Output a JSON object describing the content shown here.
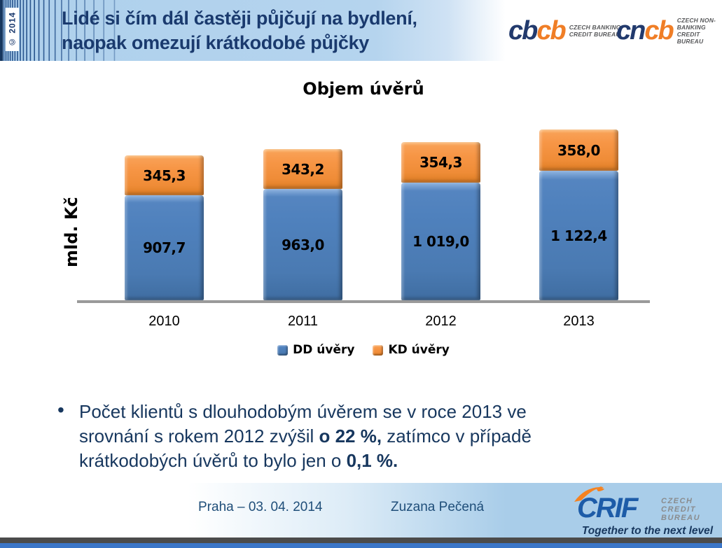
{
  "meta": {
    "copyright": "© 2014"
  },
  "header": {
    "title_line1": "Lidé si čím dál častěji půjčují na bydlení,",
    "title_line2": "naopak omezují krátkodobé půjčky",
    "logos": [
      {
        "id": "cbcb",
        "part1": "cb",
        "part2": "cb",
        "caption_line1": "CZECH BANKING",
        "caption_line2": "CREDIT BUREAU"
      },
      {
        "id": "cncb",
        "part1": "cn",
        "part2": "cb",
        "caption_line1": "CZECH NON-BANKING",
        "caption_line2": "CREDIT BUREAU"
      }
    ]
  },
  "chart_data": {
    "type": "bar",
    "stacked": true,
    "title": "Objem úvěrů",
    "xlabel": "",
    "ylabel": "mld. Kč",
    "categories": [
      "2010",
      "2011",
      "2012",
      "2013"
    ],
    "series": [
      {
        "name": "DD úvěry",
        "color": "#4f81bd",
        "values": [
          907.7,
          963.0,
          1019.0,
          1122.4
        ],
        "labels": [
          "907,7",
          "963,0",
          "1 019,0",
          "1 122,4"
        ]
      },
      {
        "name": "KD úvěry",
        "color": "#f79646",
        "values": [
          345.3,
          343.2,
          354.3,
          358.0
        ],
        "labels": [
          "345,3",
          "343,2",
          "354,3",
          "358,0"
        ]
      }
    ],
    "totals": [
      1253.0,
      1306.2,
      1373.3,
      1480.4
    ],
    "ylim": [
      0,
      1600
    ],
    "grid": false,
    "legend_position": "bottom"
  },
  "bullet": {
    "marker": "•",
    "line1": "Počet klientů s dlouhodobým úvěrem se v roce 2013 ve",
    "line2_pre": "srovnání s rokem 2012 zvýšil ",
    "line2_bold": "o 22 %,",
    "line2_post": " zatímco v případě",
    "line3_pre": "krátkodobých úvěrů to bylo jen o ",
    "line3_bold": "0,1 %."
  },
  "footer": {
    "place_date": "Praha – 03. 04. 2014",
    "author": "Zuzana Pečená",
    "crif": {
      "brand": "CRIF",
      "caption_line1": "CZECH",
      "caption_line2": "CREDIT",
      "caption_line3": "BUREAU",
      "tagline": "Together to the next level"
    }
  },
  "colors": {
    "dd_blue": "#4f81bd",
    "kd_orange": "#f79646",
    "header_bg": "#aed0ec",
    "title_navy": "#1a3a6e",
    "bullet_navy": "#17375e",
    "axis_gray": "#9a9a9a",
    "bottom_bar_gray": "#4b4b4b",
    "bottom_bar_blue": "#3b76c8"
  }
}
